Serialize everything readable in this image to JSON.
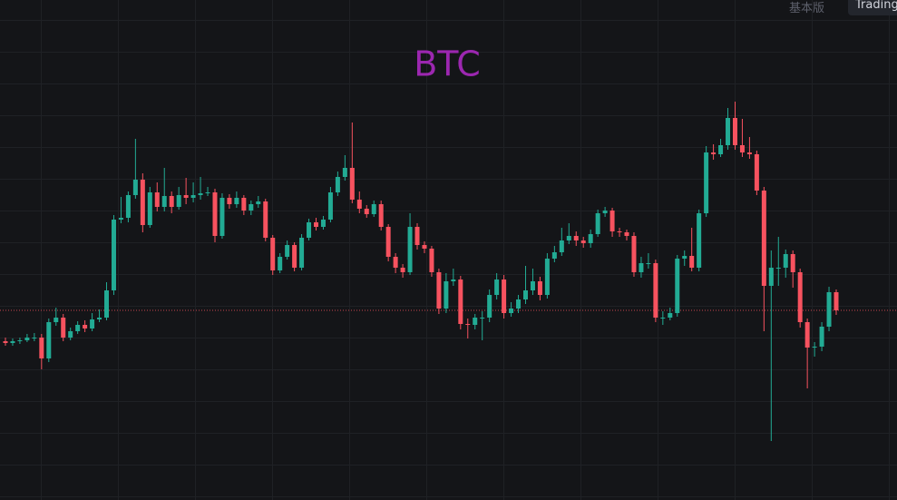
{
  "header": {
    "tabs": [
      "基本版",
      "Trading"
    ]
  },
  "chart_data": {
    "type": "candlestick",
    "title": "BTC",
    "up_color": "#22ab94",
    "down_color": "#f7525f",
    "title_color": "#9c27b0",
    "ylim": [
      0,
      551
    ],
    "open": [
      175,
      173,
      175,
      176,
      179,
      179,
      156,
      196,
      201,
      179,
      186,
      193,
      189,
      199,
      201,
      231,
      309,
      311,
      336,
      353,
      303,
      339,
      323,
      335,
      323,
      336,
      333,
      336,
      338,
      339,
      291,
      333,
      326,
      333,
      319,
      326,
      329,
      289,
      253,
      268,
      281,
      256,
      289,
      306,
      301,
      309,
      339,
      356,
      366,
      331,
      321,
      315,
      326,
      301,
      268,
      256,
      251,
      301,
      281,
      277,
      251,
      211,
      241,
      243,
      194,
      193,
      201,
      201,
      226,
      243,
      206,
      211,
      221,
      231,
      241,
      226,
      266,
      273,
      286,
      291,
      286,
      283,
      293,
      316,
      319,
      296,
      295,
      291,
      251,
      261,
      261,
      201,
      201,
      206,
      266,
      269,
      256,
      316,
      383,
      381,
      391,
      421,
      391,
      383,
      381,
      341,
      236,
      256,
      256,
      271,
      251,
      196,
      168,
      169,
      191,
      229
    ],
    "high": [
      179,
      178,
      179,
      183,
      184,
      183,
      200,
      212,
      205,
      190,
      197,
      198,
      206,
      210,
      240,
      314,
      334,
      340,
      398,
      360,
      345,
      350,
      366,
      340,
      345,
      355,
      350,
      356,
      345,
      343,
      338,
      337,
      340,
      336,
      330,
      335,
      332,
      292,
      272,
      286,
      284,
      293,
      310,
      311,
      313,
      345,
      362,
      380,
      416,
      340,
      325,
      330,
      330,
      304,
      272,
      260,
      316,
      305,
      285,
      280,
      255,
      250,
      255,
      247,
      200,
      205,
      208,
      232,
      250,
      248,
      218,
      226,
      258,
      255,
      246,
      272,
      280,
      300,
      305,
      296,
      290,
      298,
      320,
      323,
      322,
      300,
      298,
      295,
      268,
      272,
      265,
      208,
      212,
      270,
      275,
      300,
      320,
      390,
      392,
      398,
      432,
      439,
      420,
      400,
      385,
      345,
      275,
      290,
      276,
      275,
      255,
      200,
      174,
      196,
      235,
      232
    ],
    "low": [
      170,
      170,
      172,
      174,
      175,
      144,
      152,
      192,
      175,
      176,
      183,
      185,
      186,
      196,
      198,
      226,
      305,
      306,
      332,
      295,
      300,
      318,
      318,
      316,
      320,
      326,
      328,
      331,
      335,
      284,
      288,
      321,
      322,
      314,
      314,
      322,
      285,
      248,
      250,
      265,
      252,
      253,
      286,
      297,
      298,
      306,
      335,
      352,
      327,
      316,
      311,
      312,
      297,
      263,
      250,
      245,
      248,
      276,
      272,
      246,
      205,
      206,
      236,
      188,
      178,
      188,
      176,
      196,
      221,
      200,
      202,
      206,
      216,
      226,
      220,
      222,
      262,
      269,
      282,
      280,
      278,
      278,
      290,
      312,
      290,
      290,
      286,
      246,
      245,
      255,
      196,
      193,
      198,
      202,
      258,
      252,
      252,
      312,
      375,
      378,
      386,
      386,
      378,
      376,
      336,
      186,
      65,
      236,
      245,
      234,
      190,
      123,
      158,
      164,
      186,
      204
    ],
    "close": [
      173,
      175,
      176,
      179,
      179,
      156,
      196,
      201,
      179,
      186,
      193,
      189,
      199,
      201,
      231,
      309,
      311,
      336,
      353,
      303,
      339,
      323,
      335,
      323,
      336,
      333,
      336,
      338,
      339,
      291,
      333,
      326,
      333,
      319,
      326,
      329,
      289,
      253,
      268,
      281,
      256,
      289,
      306,
      301,
      309,
      339,
      356,
      366,
      331,
      321,
      315,
      326,
      301,
      268,
      256,
      251,
      301,
      281,
      277,
      251,
      211,
      241,
      243,
      194,
      193,
      201,
      201,
      226,
      243,
      206,
      211,
      221,
      231,
      241,
      226,
      266,
      273,
      286,
      291,
      286,
      283,
      293,
      316,
      319,
      296,
      295,
      291,
      251,
      261,
      261,
      201,
      201,
      206,
      266,
      269,
      256,
      316,
      383,
      381,
      391,
      421,
      391,
      383,
      381,
      341,
      236,
      256,
      256,
      271,
      251,
      196,
      168,
      169,
      191,
      229,
      209
    ]
  }
}
